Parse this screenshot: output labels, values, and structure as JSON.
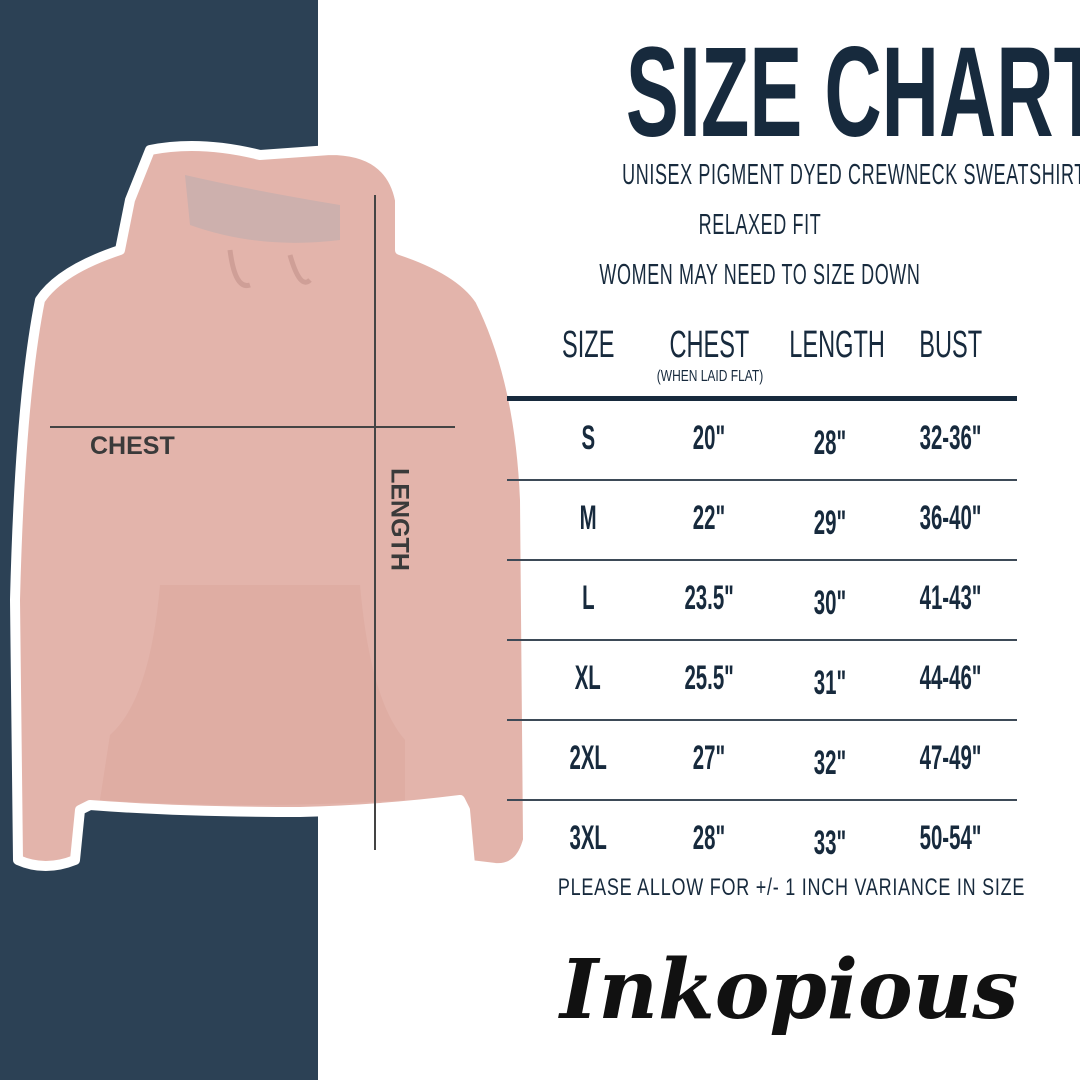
{
  "title": "SIZE CHART",
  "subtitles": [
    "UNISEX PIGMENT DYED CREWNECK SWEATSHIRT",
    "RELAXED FIT",
    "WOMEN MAY NEED TO SIZE DOWN"
  ],
  "diagram": {
    "chest_label": "CHEST",
    "length_label": "LENGTH"
  },
  "table": {
    "headers": [
      "SIZE",
      "CHEST",
      "LENGTH",
      "BUST"
    ],
    "chest_note": "(WHEN LAID FLAT)",
    "rows": [
      [
        "S",
        "20\"",
        "28\"",
        "32-36\""
      ],
      [
        "M",
        "22\"",
        "29\"",
        "36-40\""
      ],
      [
        "L",
        "23.5\"",
        "30\"",
        "41-43\""
      ],
      [
        "XL",
        "25.5\"",
        "31\"",
        "44-46\""
      ],
      [
        "2XL",
        "27\"",
        "32\"",
        "47-49\""
      ],
      [
        "3XL",
        "28\"",
        "33\"",
        "50-54\""
      ]
    ]
  },
  "note": "PLEASE ALLOW FOR +/- 1 INCH VARIANCE IN SIZE",
  "logo": "Inkopious",
  "colors": {
    "navy_panel": "#2c4155",
    "text": "#172a3d",
    "hoodie": "#e3b4ab"
  }
}
